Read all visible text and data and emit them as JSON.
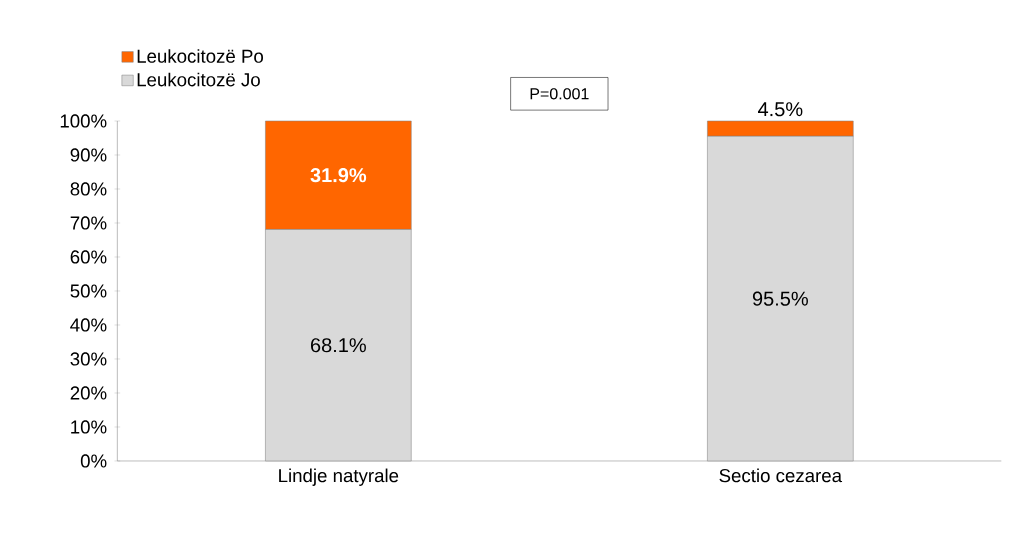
{
  "chart_data": {
    "type": "bar",
    "stacked": true,
    "categories": [
      "Lindje natyrale",
      "Sectio cezarea"
    ],
    "series": [
      {
        "name": "Leukocitozë Jo",
        "color": "#d9d9d9",
        "values": [
          68.1,
          95.5
        ],
        "value_labels": [
          "68.1%",
          "95.5%"
        ]
      },
      {
        "name": "Leukocitozë Po",
        "color": "#ff6600",
        "values": [
          31.9,
          4.5
        ],
        "value_labels": [
          "31.9%",
          "4.5%"
        ]
      }
    ],
    "ylim": [
      0,
      100
    ],
    "yticks": [
      {
        "value": 0,
        "label": "0%"
      },
      {
        "value": 10,
        "label": "10%"
      },
      {
        "value": 20,
        "label": "20%"
      },
      {
        "value": 30,
        "label": "30%"
      },
      {
        "value": 40,
        "label": "40%"
      },
      {
        "value": 50,
        "label": "50%"
      },
      {
        "value": 60,
        "label": "60%"
      },
      {
        "value": 70,
        "label": "70%"
      },
      {
        "value": 80,
        "label": "80%"
      },
      {
        "value": 90,
        "label": "90%"
      },
      {
        "value": 100,
        "label": "100%"
      }
    ],
    "annotations": [
      "P=0.001"
    ],
    "legend": "top left",
    "grid": false
  }
}
